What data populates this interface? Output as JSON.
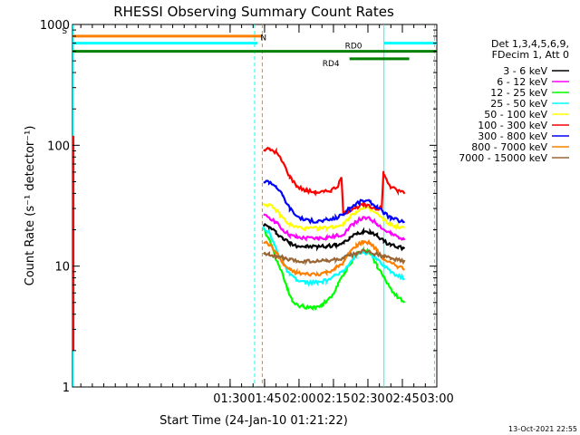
{
  "chart_data": {
    "type": "line",
    "title": "RHESSI Observing Summary Count Rates",
    "xlabel": "Start Time (24-Jan-10 01:21:22)",
    "ylabel": "Count Rate (s⁻¹ detector⁻¹)",
    "y_scale": "log",
    "ylim": [
      1,
      1000
    ],
    "xlim_minutes": [
      21.37,
      180.0
    ],
    "y_ticks": [
      {
        "value": 1,
        "label": "1"
      },
      {
        "value": 10,
        "label": "10"
      },
      {
        "value": 100,
        "label": "100"
      },
      {
        "value": 1000,
        "label": "1000"
      }
    ],
    "x_ticks": [
      {
        "minute": 90,
        "label": "01:30"
      },
      {
        "minute": 105,
        "label": "01:45"
      },
      {
        "minute": 120,
        "label": "02:00"
      },
      {
        "minute": 135,
        "label": "02:15"
      },
      {
        "minute": 150,
        "label": "02:30"
      },
      {
        "minute": 165,
        "label": "02:45"
      },
      {
        "minute": 180,
        "label": "03:00"
      }
    ],
    "legend_header": [
      "Det 1,3,4,5,6,9,",
      "FDecim 1, Att 0"
    ],
    "legend_position": "right",
    "series": [
      {
        "name": "3 - 6 keV",
        "color": "#000000",
        "points": [
          [
            104.5,
            22
          ],
          [
            107,
            21
          ],
          [
            110,
            19
          ],
          [
            113,
            17
          ],
          [
            116,
            15.5
          ],
          [
            119,
            14.8
          ],
          [
            123,
            14.5
          ],
          [
            128,
            14.5
          ],
          [
            132,
            14.6
          ],
          [
            136,
            15
          ],
          [
            139.5,
            15.5
          ],
          [
            142,
            17
          ],
          [
            145,
            18.5
          ],
          [
            148,
            19.5
          ],
          [
            151,
            19.3
          ],
          [
            154,
            18
          ],
          [
            157,
            16
          ],
          [
            160,
            15
          ],
          [
            163,
            14.5
          ],
          [
            166,
            14
          ]
        ]
      },
      {
        "name": "6 - 12 keV",
        "color": "#ff00ff",
        "points": [
          [
            104.5,
            26
          ],
          [
            107,
            25.5
          ],
          [
            110,
            23
          ],
          [
            113,
            20
          ],
          [
            116,
            18
          ],
          [
            119,
            17.3
          ],
          [
            123,
            17
          ],
          [
            128,
            17
          ],
          [
            132,
            17.2
          ],
          [
            136,
            17.6
          ],
          [
            139.5,
            18.5
          ],
          [
            142,
            21
          ],
          [
            145,
            23.5
          ],
          [
            148,
            25
          ],
          [
            151,
            24.5
          ],
          [
            154,
            22.5
          ],
          [
            157,
            20
          ],
          [
            160,
            18.5
          ],
          [
            163,
            17.5
          ],
          [
            166,
            17
          ]
        ]
      },
      {
        "name": "12 - 25 keV",
        "color": "#00ff00",
        "points": [
          [
            104.5,
            20
          ],
          [
            107,
            17
          ],
          [
            110,
            11.5
          ],
          [
            113,
            8.5
          ],
          [
            115,
            6.5
          ],
          [
            117,
            5.2
          ],
          [
            119,
            4.8
          ],
          [
            122,
            4.6
          ],
          [
            126,
            4.5
          ],
          [
            130,
            4.8
          ],
          [
            134,
            5.5
          ],
          [
            137,
            7
          ],
          [
            140,
            9
          ],
          [
            143,
            11
          ],
          [
            146,
            13
          ],
          [
            148,
            13.5
          ],
          [
            151,
            13
          ],
          [
            154,
            10
          ],
          [
            157,
            8
          ],
          [
            160,
            6.5
          ],
          [
            163,
            5.5
          ],
          [
            166,
            5
          ]
        ]
      },
      {
        "name": "25 - 50 keV",
        "color": "#00ffff",
        "points": [
          [
            104.5,
            21
          ],
          [
            107,
            19
          ],
          [
            110,
            14
          ],
          [
            113,
            10.5
          ],
          [
            116,
            8.5
          ],
          [
            119,
            7.6
          ],
          [
            123,
            7.3
          ],
          [
            128,
            7.3
          ],
          [
            132,
            7.6
          ],
          [
            136,
            8.3
          ],
          [
            139.5,
            9.3
          ],
          [
            142,
            10.7
          ],
          [
            145,
            12.3
          ],
          [
            148,
            13
          ],
          [
            151,
            12.7
          ],
          [
            154,
            11.3
          ],
          [
            157,
            10
          ],
          [
            160,
            9
          ],
          [
            163,
            8.3
          ],
          [
            166,
            8
          ]
        ]
      },
      {
        "name": "50 - 100 keV",
        "color": "#ffff00",
        "points": [
          [
            104.5,
            33
          ],
          [
            107,
            32
          ],
          [
            110,
            29
          ],
          [
            113,
            25
          ],
          [
            116,
            22
          ],
          [
            119,
            21
          ],
          [
            123,
            20.5
          ],
          [
            128,
            20.5
          ],
          [
            132,
            20.7
          ],
          [
            136,
            21.3
          ],
          [
            139.5,
            22.5
          ],
          [
            142,
            25.5
          ],
          [
            145,
            28.5
          ],
          [
            148,
            30
          ],
          [
            151,
            29.5
          ],
          [
            154,
            27
          ],
          [
            157,
            24
          ],
          [
            160,
            22
          ],
          [
            163,
            21
          ],
          [
            166,
            20.5
          ]
        ]
      },
      {
        "name": "100 - 300 keV",
        "color": "#ff0000",
        "points": [
          [
            104.5,
            92
          ],
          [
            107,
            93
          ],
          [
            110,
            88
          ],
          [
            113,
            72
          ],
          [
            116,
            55
          ],
          [
            119,
            46
          ],
          [
            123,
            42
          ],
          [
            127,
            41
          ],
          [
            131,
            41
          ],
          [
            134,
            42.5
          ],
          [
            137,
            46
          ],
          [
            138.5,
            54
          ],
          [
            139.3,
            27
          ],
          [
            142,
            29
          ],
          [
            145,
            31
          ],
          [
            148,
            32
          ],
          [
            151,
            31
          ],
          [
            154,
            30
          ],
          [
            156,
            30
          ],
          [
            156.8,
            60
          ],
          [
            158,
            52
          ],
          [
            160,
            45
          ],
          [
            163,
            42
          ],
          [
            166,
            41
          ]
        ]
      },
      {
        "name": "300 - 800 keV",
        "color": "#0000ff",
        "points": [
          [
            104.5,
            50
          ],
          [
            107,
            50
          ],
          [
            110,
            46
          ],
          [
            113,
            38
          ],
          [
            116,
            30
          ],
          [
            119,
            26
          ],
          [
            123,
            24
          ],
          [
            128,
            23.5
          ],
          [
            132,
            24
          ],
          [
            136,
            25
          ],
          [
            139.5,
            27
          ],
          [
            142,
            30
          ],
          [
            145,
            33
          ],
          [
            148,
            35
          ],
          [
            151,
            34
          ],
          [
            154,
            31
          ],
          [
            157,
            27.5
          ],
          [
            160,
            25
          ],
          [
            163,
            24
          ],
          [
            166,
            23
          ]
        ]
      },
      {
        "name": "800 - 7000 keV",
        "color": "#ff8000",
        "points": [
          [
            104.5,
            16
          ],
          [
            107,
            15
          ],
          [
            110,
            13
          ],
          [
            113,
            10.5
          ],
          [
            116,
            9.3
          ],
          [
            119,
            8.8
          ],
          [
            123,
            8.6
          ],
          [
            128,
            8.6
          ],
          [
            132,
            8.9
          ],
          [
            136,
            9.6
          ],
          [
            139.5,
            10.8
          ],
          [
            142,
            13
          ],
          [
            145,
            14.8
          ],
          [
            148,
            16
          ],
          [
            151,
            15.5
          ],
          [
            154,
            13.5
          ],
          [
            157,
            11.5
          ],
          [
            160,
            10.5
          ],
          [
            163,
            10
          ],
          [
            166,
            9.5
          ]
        ]
      },
      {
        "name": "7000 - 15000 keV",
        "color": "#996633",
        "points": [
          [
            104.5,
            13
          ],
          [
            107,
            12.5
          ],
          [
            110,
            12
          ],
          [
            113,
            11.6
          ],
          [
            116,
            11.3
          ],
          [
            119,
            11
          ],
          [
            123,
            11
          ],
          [
            128,
            11
          ],
          [
            132,
            11.1
          ],
          [
            136,
            11.3
          ],
          [
            139.5,
            11.6
          ],
          [
            142,
            12.2
          ],
          [
            145,
            12.8
          ],
          [
            148,
            13.2
          ],
          [
            151,
            13
          ],
          [
            154,
            12.5
          ],
          [
            157,
            12
          ],
          [
            160,
            11.5
          ],
          [
            163,
            11.3
          ],
          [
            166,
            11
          ]
        ]
      }
    ],
    "indicators": [
      {
        "label": "S",
        "color": "#ff8000",
        "start_min": 21.5,
        "end_min": 104.0,
        "level": 800
      },
      {
        "label": "N",
        "color": "#00ffff",
        "start_min": 21.5,
        "end_min": 102.0,
        "level": 700
      },
      {
        "label": "",
        "color": "#00ffff",
        "start_min": 157.0,
        "end_min": 180.0,
        "level": 700
      },
      {
        "label": "RD0",
        "color": "#008000",
        "start_min": 21.5,
        "end_min": 180.0,
        "level": 600
      },
      {
        "label": "RD4",
        "color": "#008000",
        "start_min": 142.0,
        "end_min": 168.0,
        "level": 520
      }
    ],
    "vertical_markers": [
      {
        "minute": 21.6,
        "color": "#00ffff",
        "style": "solid"
      },
      {
        "minute": 100.7,
        "color": "#00ffff",
        "style": "dashed"
      },
      {
        "minute": 104.0,
        "color": "#ff8000",
        "style": "dashed"
      },
      {
        "minute": 157.0,
        "color": "#00ffff",
        "style": "solid"
      },
      {
        "minute": 179.0,
        "color": "#00ffff",
        "style": "dashed"
      }
    ],
    "timestamp": "13-Oct-2021 22:55"
  }
}
